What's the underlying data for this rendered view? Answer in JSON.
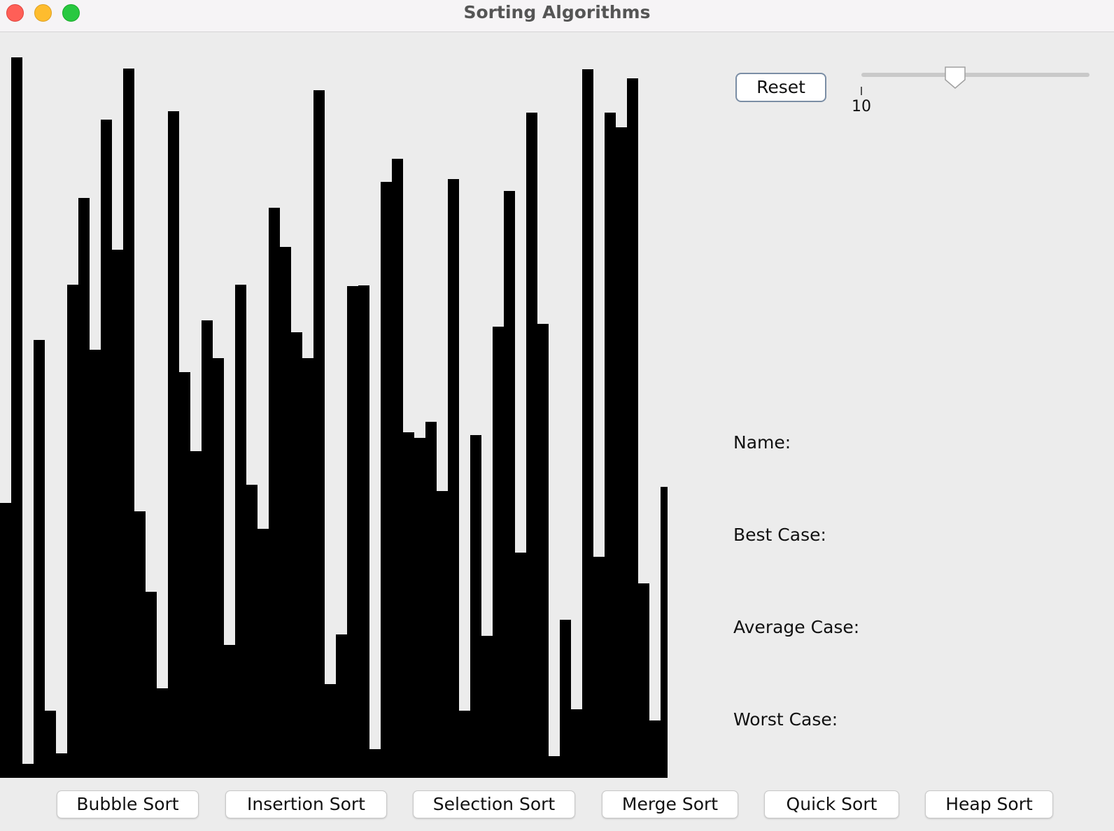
{
  "window": {
    "title": "Sorting Algorithms"
  },
  "controls": {
    "reset_label": "Reset",
    "slider": {
      "value": 10,
      "min_label": "10",
      "fraction": 0.41
    }
  },
  "info": {
    "name_label": "Name:",
    "best_case_label": "Best Case:",
    "average_case_label": "Average Case:",
    "worst_case_label": "Worst Case:"
  },
  "sort_buttons": [
    "Bubble Sort",
    "Insertion Sort",
    "Selection Sort",
    "Merge Sort",
    "Quick Sort",
    "Heap Sort"
  ],
  "chart_data": {
    "type": "bar",
    "color": "#000000",
    "values": [
      393,
      1030,
      20,
      626,
      96,
      35,
      705,
      829,
      612,
      941,
      755,
      1014,
      381,
      266,
      128,
      953,
      580,
      467,
      654,
      600,
      190,
      705,
      419,
      356,
      815,
      759,
      637,
      600,
      983,
      134,
      205,
      703,
      704,
      41,
      852,
      885,
      494,
      486,
      509,
      410,
      856,
      96,
      490,
      203,
      645,
      839,
      322,
      951,
      649,
      31,
      226,
      98,
      1013,
      316,
      951,
      930,
      1000,
      278,
      82,
      416
    ]
  }
}
